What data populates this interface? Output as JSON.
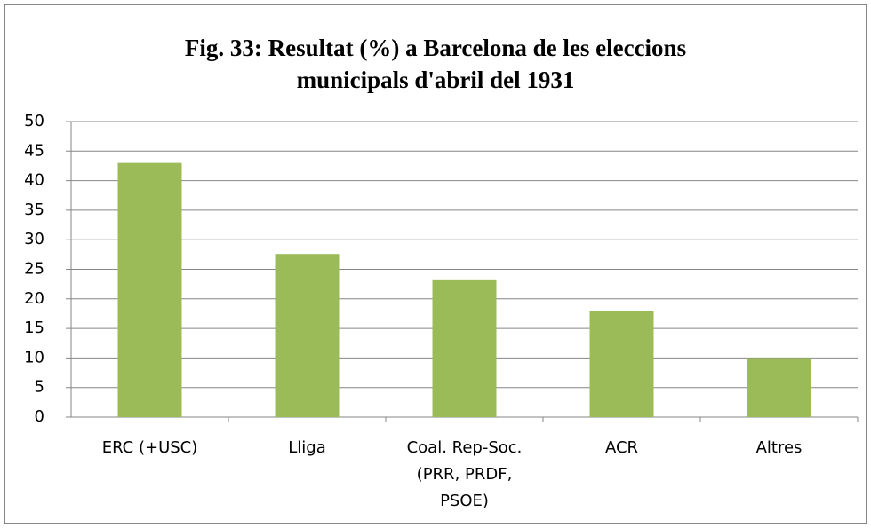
{
  "chart_data": {
    "type": "bar",
    "title": "Fig. 33: Resultat (%) a Barcelona de les eleccions municipals d'abril del 1931",
    "categories": [
      "ERC (+USC)",
      "Lliga",
      "Coal. Rep-Soc. (PRR, PRDF, PSOE)",
      "ACR",
      "Altres"
    ],
    "values": [
      43,
      27.6,
      23.3,
      17.9,
      10
    ],
    "color": "#9bbb59",
    "ylim": [
      0,
      50
    ],
    "yticks": [
      0,
      5,
      10,
      15,
      20,
      25,
      30,
      35,
      40,
      45,
      50
    ],
    "grid": true
  }
}
